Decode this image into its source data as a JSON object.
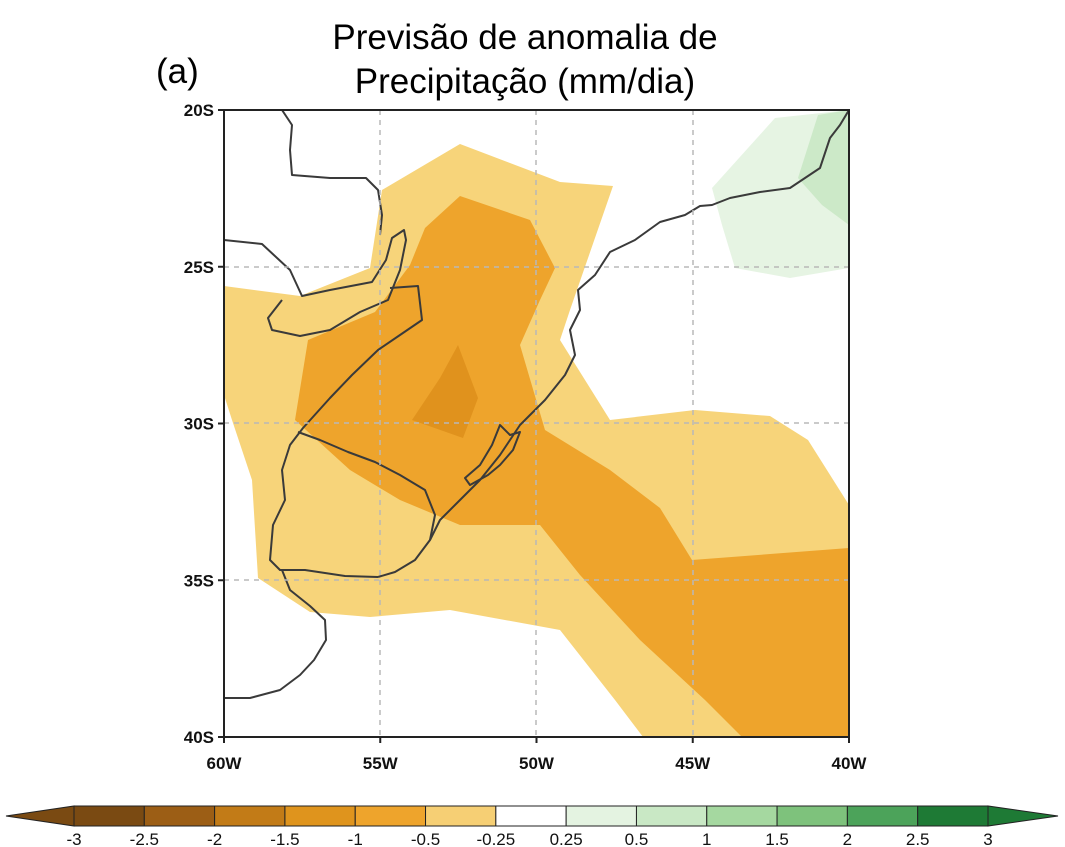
{
  "title": {
    "line1": "Previsão de anomalia de",
    "line2": "Precipitação (mm/dia)"
  },
  "panel_label": "(a)",
  "map": {
    "lat_labels": [
      "20S",
      "25S",
      "30S",
      "35S",
      "40S"
    ],
    "lon_labels": [
      "60W",
      "55W",
      "50W",
      "45W",
      "40W"
    ],
    "lat_range": [
      -40,
      -20
    ],
    "lon_range": [
      -60,
      -40
    ],
    "gridlines": "dashed",
    "coastlines": true
  },
  "colorbar": {
    "labels": [
      "-3",
      "-2.5",
      "-2",
      "-1.5",
      "-1",
      "-0.5",
      "-0.25",
      "0.25",
      "0.5",
      "1",
      "1.5",
      "2",
      "2.5",
      "3"
    ],
    "colors": [
      "#7a4a12",
      "#9c5e15",
      "#c27b17",
      "#df941d",
      "#eea42c",
      "#f6cf74",
      "#ffffff",
      "#e4f3e1",
      "#c9e8c5",
      "#a5d8a0",
      "#7ec27c",
      "#4ca35a",
      "#1e7a35"
    ],
    "extend": "both"
  },
  "anomaly_regions": [
    {
      "level": "-0.5",
      "color": "#f7d47a",
      "description": "broad dry anomaly over southern Brazil, Uruguay and adjacent Atlantic"
    },
    {
      "level": "-1",
      "color": "#eea42c",
      "description": "core dry anomaly over Paraná-Rio Grande do Sul and the Atlantic to the southeast"
    },
    {
      "level": "-1.5",
      "color": "#e0921d",
      "description": "small maximum near 29S 53W"
    },
    {
      "level": "0.25",
      "color": "#e4f3e1",
      "description": "weak wet anomaly near 20-25S, 42W"
    },
    {
      "level": "0.5",
      "color": "#c9e8c5",
      "description": "wet anomaly near 21S 40W"
    }
  ]
}
